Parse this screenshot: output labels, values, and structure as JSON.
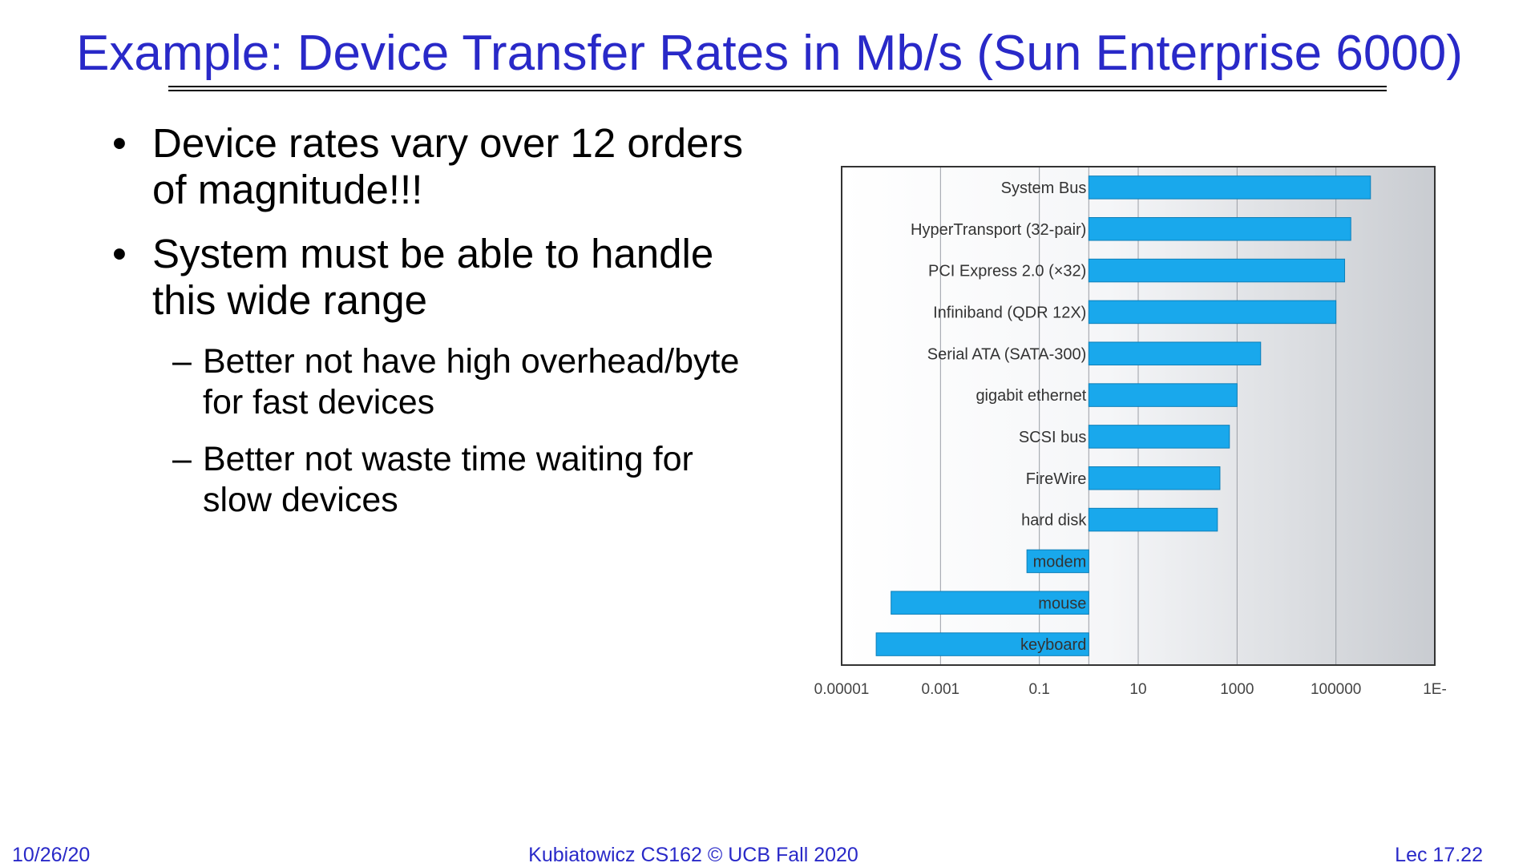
{
  "slide": {
    "title": "Example: Device Transfer Rates in Mb/s (Sun Enterprise 6000)",
    "bullets": [
      {
        "text": "Device rates vary over 12 orders of magnitude!!!",
        "subs": []
      },
      {
        "text": "System must be able to handle this wide range",
        "subs": [
          "Better not have high overhead/byte for fast devices",
          "Better not waste time waiting for slow devices"
        ]
      }
    ]
  },
  "footer": {
    "date": "10/26/20",
    "course": "Kubiatowicz CS162 © UCB Fall 2020",
    "lecture": "Lec 17.22"
  },
  "colors": {
    "title": "#2929c8",
    "bar": "#19a8ec",
    "bar_edge": "#0e7fb8"
  },
  "chart_data": {
    "type": "bar",
    "orientation": "horizontal",
    "scale": "log10",
    "categories": [
      "System Bus",
      "HyperTransport (32-pair)",
      "PCI Express 2.0 (×32)",
      "Infiniband (QDR 12X)",
      "Serial ATA (SATA-300)",
      "gigabit ethernet",
      "SCSI bus",
      "FireWire",
      "hard disk",
      "modem",
      "mouse",
      "keyboard"
    ],
    "values": [
      500000,
      200000,
      150000,
      100000,
      3000,
      1000,
      700,
      450,
      400,
      0.056,
      0.0001,
      5e-05
    ],
    "xticks": [
      "0.00001",
      "0.001",
      "0.1",
      "10",
      "1000",
      "100000",
      "1E-"
    ],
    "xlim": [
      1e-05,
      10000000
    ],
    "grid": true
  }
}
